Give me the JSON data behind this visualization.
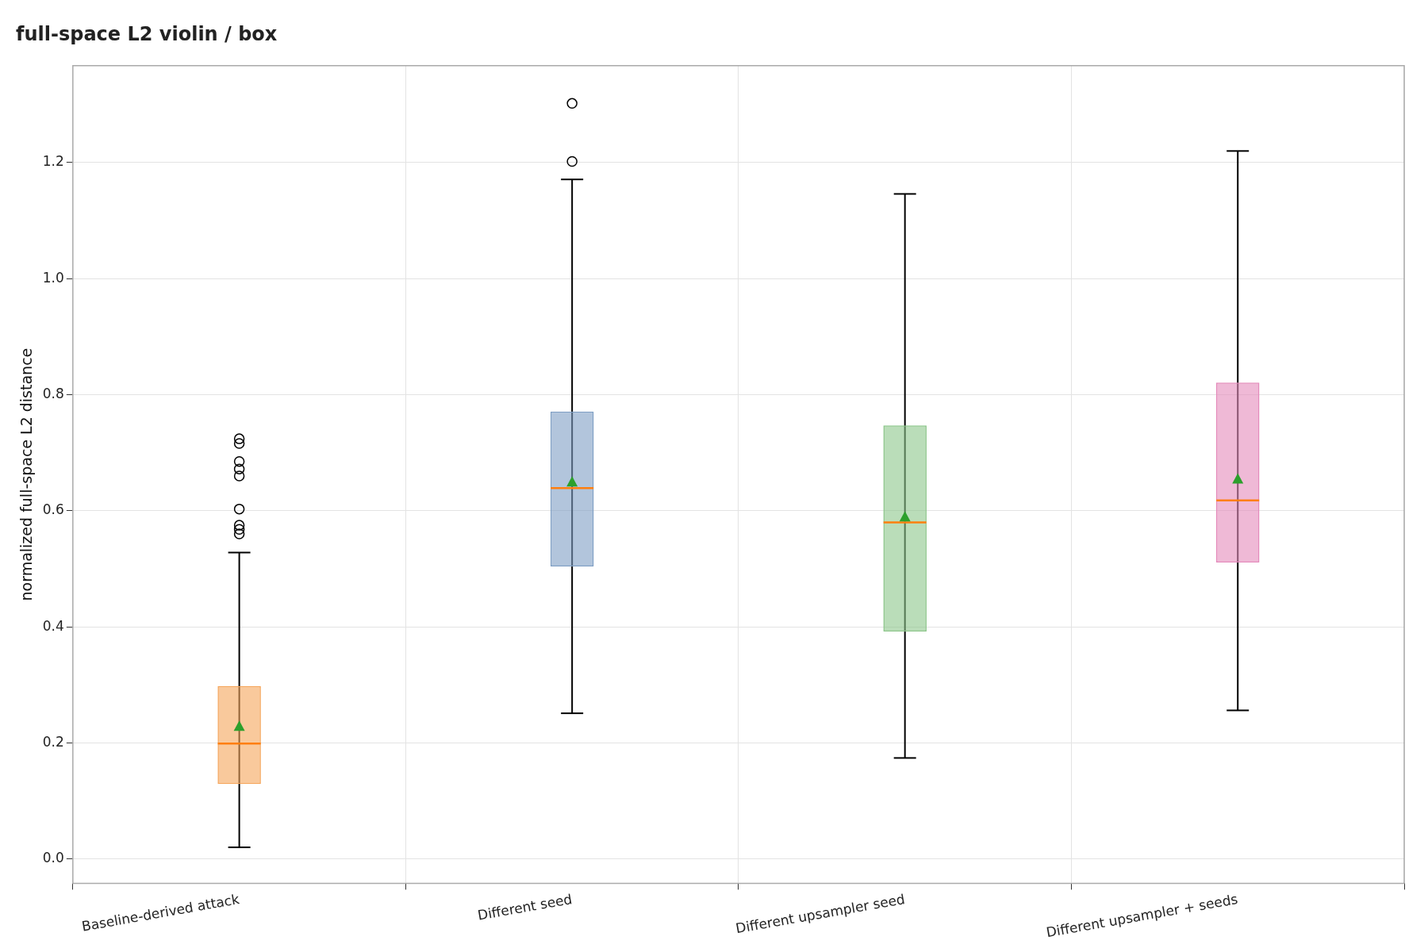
{
  "chart_data": {
    "type": "box",
    "title": "full-space L2 violin / box",
    "ylabel": "normalized full-space L2 distance",
    "categories": [
      "Baseline-derived attack",
      "Different seed",
      "Different upsampler seed",
      "Different upsampler + seeds"
    ],
    "colors": [
      "#f5a55a",
      "#7f9fc4",
      "#8cc68a",
      "#e48abb"
    ],
    "boxes": [
      {
        "low": 0.02,
        "q1": 0.129,
        "median": 0.199,
        "q3": 0.298,
        "high": 0.528,
        "mean": 0.229,
        "outliers": [
          0.56,
          0.568,
          0.575,
          0.603,
          0.66,
          0.672,
          0.685,
          0.716,
          0.724
        ]
      },
      {
        "low": 0.251,
        "q1": 0.504,
        "median": 0.639,
        "q3": 0.771,
        "high": 1.171,
        "mean": 0.65,
        "outliers": [
          1.202,
          1.302
        ]
      },
      {
        "low": 0.174,
        "q1": 0.392,
        "median": 0.58,
        "q3": 0.747,
        "high": 1.146,
        "mean": 0.59
      },
      {
        "low": 0.256,
        "q1": 0.511,
        "median": 0.618,
        "q3": 0.821,
        "high": 1.22,
        "mean": 0.655
      }
    ],
    "ylim": [
      -0.042,
      1.367
    ],
    "yticks": [
      {
        "value": 0,
        "label": "0.0"
      },
      {
        "value": 0.2,
        "label": "0.2"
      },
      {
        "value": 0.4,
        "label": "0.4"
      },
      {
        "value": 0.6,
        "label": "0.6"
      },
      {
        "value": 0.8,
        "label": "0.8"
      },
      {
        "value": 1,
        "label": "1.0"
      },
      {
        "value": 1.2,
        "label": "1.2"
      }
    ],
    "grid": true,
    "legend": false
  }
}
